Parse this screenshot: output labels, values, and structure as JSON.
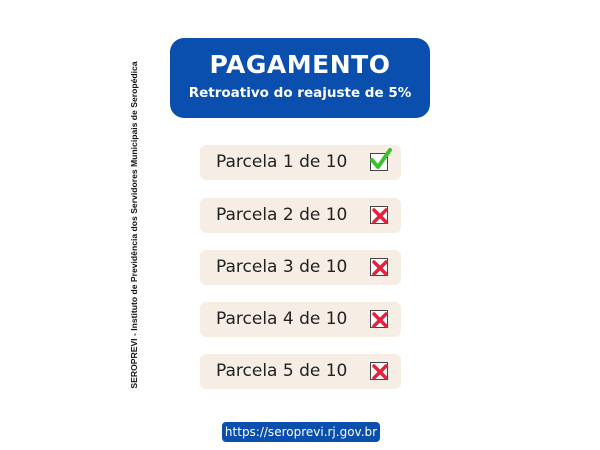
{
  "sidebar_text": "SEROPREVI - Instituto de Previdência dos Servidores Municipais de Seropédica",
  "header": {
    "title": "PAGAMENTO",
    "subtitle": "Retroativo do reajuste de 5%"
  },
  "installments": [
    {
      "label": "Parcela 1 de 10",
      "status": "check-icon",
      "paid": true
    },
    {
      "label": "Parcela 2 de 10",
      "status": "x-icon",
      "paid": false
    },
    {
      "label": "Parcela 3 de 10",
      "status": "x-icon",
      "paid": false
    },
    {
      "label": "Parcela 4 de 10",
      "status": "x-icon",
      "paid": false
    },
    {
      "label": "Parcela 5 de 10",
      "status": "x-icon",
      "paid": false
    }
  ],
  "url": "https://seroprevi.rj.gov.br",
  "colors": {
    "brand": "#0a4fae",
    "card": "#f6ede4",
    "check": "#3dbf2f",
    "cross": "#e8213a"
  }
}
